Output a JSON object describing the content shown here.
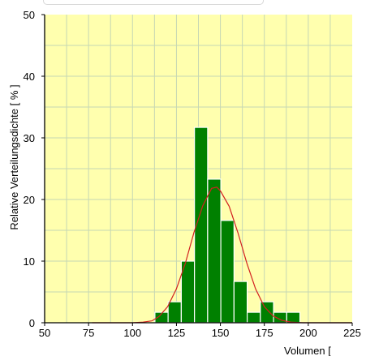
{
  "chart_data": {
    "type": "bar",
    "xlabel": "Volumen [",
    "ylabel": "Relative Verteilungsdichte [ % ]",
    "xlim": [
      50,
      225
    ],
    "ylim": [
      0,
      50
    ],
    "xticks": [
      "50",
      "75",
      "100",
      "125",
      "150",
      "175",
      "200",
      "225"
    ],
    "yticks": [
      "0",
      "10",
      "20",
      "30",
      "40",
      "50"
    ],
    "grid": true,
    "bar_width": 7.5,
    "bars": [
      {
        "x": 116.5,
        "value": 1.7
      },
      {
        "x": 124,
        "value": 3.4
      },
      {
        "x": 131.5,
        "value": 10
      },
      {
        "x": 139,
        "value": 31.7
      },
      {
        "x": 146.5,
        "value": 23.3
      },
      {
        "x": 154,
        "value": 16.6
      },
      {
        "x": 161.5,
        "value": 6.7
      },
      {
        "x": 169,
        "value": 1.7
      },
      {
        "x": 176.5,
        "value": 3.4
      },
      {
        "x": 184,
        "value": 1.7
      },
      {
        "x": 191.5,
        "value": 1.7
      }
    ],
    "curve": {
      "x": [
        77,
        100,
        106,
        111,
        115,
        120,
        125,
        130,
        135,
        140,
        145,
        148,
        150,
        155,
        160,
        165,
        170,
        175,
        180,
        185,
        190,
        197,
        205,
        215,
        225
      ],
      "y": [
        0,
        0,
        0.1,
        0.3,
        1.0,
        2.6,
        5.5,
        9.6,
        14.7,
        19.0,
        21.8,
        22.0,
        21.4,
        18.9,
        14.6,
        9.7,
        5.5,
        2.6,
        1.1,
        0.4,
        0.1,
        0,
        0,
        0,
        0
      ]
    },
    "colors": {
      "plot_background": "#ffffae",
      "grid": "#c6d7b4",
      "bar_fill": "#008000",
      "bar_edge": "#ffffff",
      "curve": "#d22020",
      "axis": "#000000"
    }
  }
}
